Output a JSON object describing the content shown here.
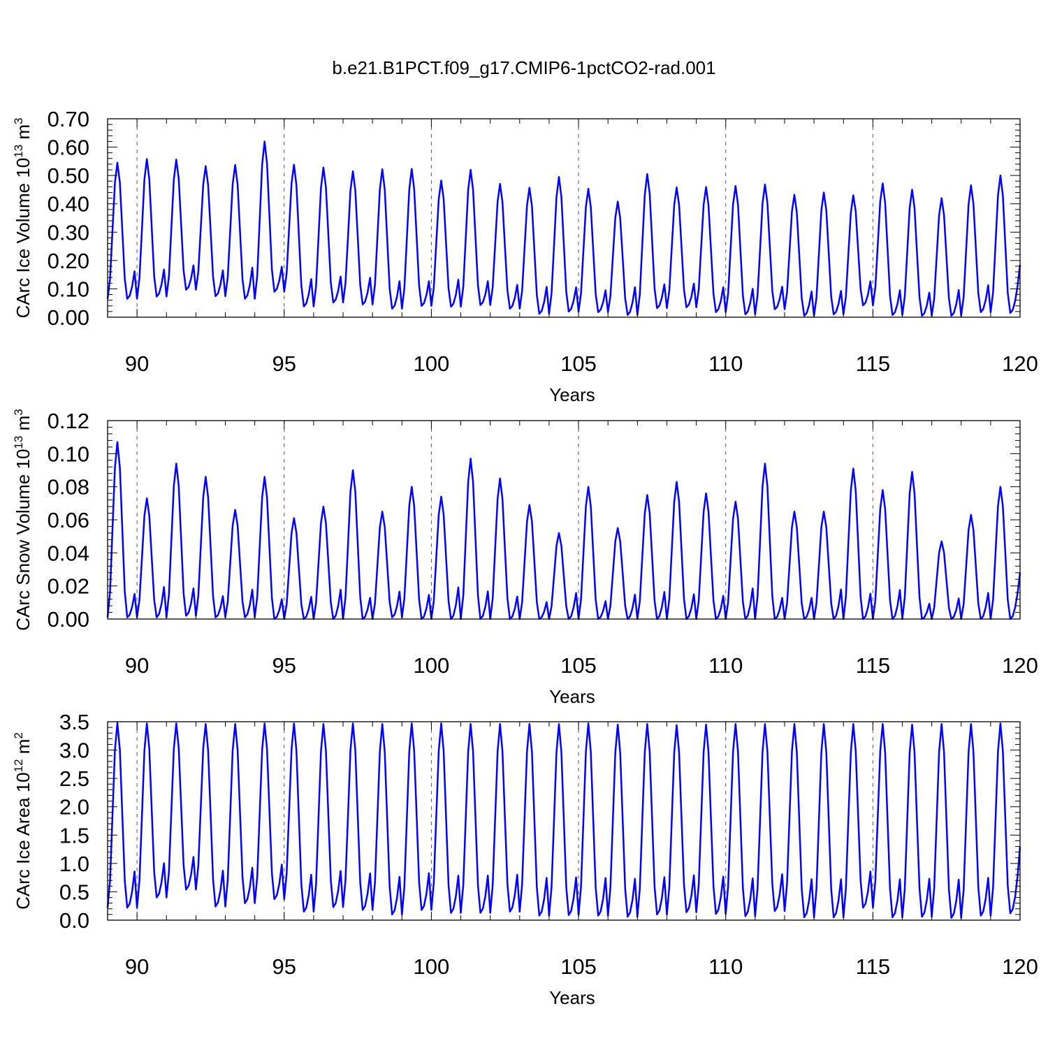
{
  "title": "b.e21.B1PCT.f09_g17.CMIP6-1pctCO2-rad.001",
  "chart_data": [
    {
      "type": "line",
      "ylabel": "CArc Ice Volume 10",
      "ylabel_exp": "13",
      "ylabel_unit": "m",
      "ylabel_unit_exp": "3",
      "xlabel": "Years",
      "xlim": [
        89,
        120
      ],
      "ylim": [
        0,
        0.7
      ],
      "x_ticks": [
        "90",
        "95",
        "100",
        "105",
        "110",
        "115",
        "120"
      ],
      "y_ticks": [
        "0.00",
        "0.10",
        "0.20",
        "0.30",
        "0.40",
        "0.50",
        "0.60",
        "0.70"
      ],
      "series": [
        {
          "color": "#0000ff",
          "annual_max": [
            0.545,
            0.558,
            0.556,
            0.533,
            0.537,
            0.62,
            0.538,
            0.528,
            0.515,
            0.522,
            0.523,
            0.482,
            0.52,
            0.47,
            0.457,
            0.495,
            0.453,
            0.408,
            0.505,
            0.458,
            0.459,
            0.463,
            0.468,
            0.432,
            0.44,
            0.43,
            0.472,
            0.45,
            0.42,
            0.465,
            0.5
          ],
          "annual_min": [
            0.065,
            0.073,
            0.097,
            0.074,
            0.065,
            0.09,
            0.038,
            0.052,
            0.045,
            0.03,
            0.04,
            0.037,
            0.043,
            0.03,
            0.012,
            0.02,
            0.018,
            0.008,
            0.032,
            0.035,
            0.018,
            0.01,
            0.028,
            0.005,
            0.01,
            0.042,
            0.008,
            0.005,
            0.005,
            0.018,
            0.015
          ]
        }
      ]
    },
    {
      "type": "line",
      "ylabel": "CArc Snow Volume 10",
      "ylabel_exp": "13",
      "ylabel_unit": "m",
      "ylabel_unit_exp": "3",
      "xlabel": "Years",
      "xlim": [
        89,
        120
      ],
      "ylim": [
        0,
        0.12
      ],
      "x_ticks": [
        "90",
        "95",
        "100",
        "105",
        "110",
        "115",
        "120"
      ],
      "y_ticks": [
        "0.00",
        "0.02",
        "0.04",
        "0.06",
        "0.08",
        "0.10",
        "0.12"
      ],
      "series": [
        {
          "color": "#0000ff",
          "annual_max": [
            0.107,
            0.073,
            0.094,
            0.086,
            0.066,
            0.086,
            0.061,
            0.068,
            0.09,
            0.065,
            0.08,
            0.074,
            0.097,
            0.085,
            0.069,
            0.052,
            0.08,
            0.055,
            0.075,
            0.083,
            0.076,
            0.071,
            0.094,
            0.065,
            0.065,
            0.091,
            0.078,
            0.089,
            0.047,
            0.063,
            0.08
          ],
          "annual_min": [
            0.001,
            0.001,
            0.002,
            0.001,
            0.001,
            0.0,
            0.0,
            0.0,
            0.0,
            0.001,
            0.0,
            0.0,
            0.0,
            0.0,
            0.0,
            0.0,
            0.0,
            0.0,
            0.0,
            0.0,
            0.0,
            0.0,
            0.0,
            0.0,
            0.0,
            0.0,
            0.0,
            0.0,
            0.0,
            0.0,
            0.0
          ]
        }
      ]
    },
    {
      "type": "line",
      "ylabel": "CArc Ice Area 10",
      "ylabel_exp": "12",
      "ylabel_unit": "m",
      "ylabel_unit_exp": "2",
      "xlabel": "Years",
      "xlim": [
        89,
        120
      ],
      "ylim": [
        0,
        3.5
      ],
      "x_ticks": [
        "90",
        "95",
        "100",
        "105",
        "110",
        "115",
        "120"
      ],
      "y_ticks": [
        "0.0",
        "0.5",
        "1.0",
        "1.5",
        "2.0",
        "2.5",
        "3.0",
        "3.5"
      ],
      "series": [
        {
          "color": "#0000ff",
          "annual_max": [
            3.48,
            3.47,
            3.47,
            3.46,
            3.46,
            3.47,
            3.47,
            3.46,
            3.47,
            3.46,
            3.47,
            3.47,
            3.46,
            3.46,
            3.46,
            3.46,
            3.47,
            3.45,
            3.46,
            3.44,
            3.45,
            3.46,
            3.46,
            3.46,
            3.46,
            3.46,
            3.46,
            3.45,
            3.46,
            3.46,
            3.47
          ],
          "annual_min": [
            0.22,
            0.4,
            0.54,
            0.24,
            0.3,
            0.37,
            0.15,
            0.23,
            0.18,
            0.1,
            0.18,
            0.13,
            0.13,
            0.15,
            0.08,
            0.09,
            0.08,
            0.06,
            0.1,
            0.14,
            0.11,
            0.07,
            0.16,
            0.05,
            0.05,
            0.22,
            0.05,
            0.06,
            0.04,
            0.08,
            0.12
          ]
        }
      ]
    }
  ]
}
